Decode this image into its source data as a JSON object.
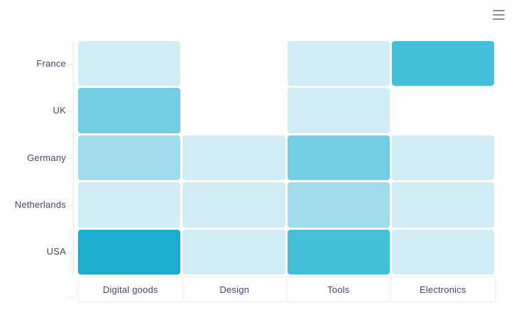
{
  "ui": {
    "menu_button": "export-hamburger-menu"
  },
  "style": {
    "axis_text_color": "#45456a",
    "axis_line_color": "#e9e9ef",
    "background": "#ffffff",
    "menu_icon_color": "#8190a6"
  },
  "chart_data": {
    "type": "heatmap",
    "title": "",
    "x_categories": [
      "Digital goods",
      "Design",
      "Tools",
      "Electronics"
    ],
    "y_categories": [
      "France",
      "UK",
      "Germany",
      "Netherlands",
      "USA"
    ],
    "legend": "none",
    "grid": "off",
    "cell_colors": [
      [
        "#d2edf6",
        null,
        "#d2edf6",
        "#46bfd9"
      ],
      [
        "#73cee3",
        null,
        "#d2edf6",
        null
      ],
      [
        "#a2dcec",
        "#d2edf6",
        "#73cee3",
        "#d2edf6"
      ],
      [
        "#d2edf6",
        "#d2edf6",
        "#a2dcec",
        "#d2edf6"
      ],
      [
        "#1badce",
        "#d2edf6",
        "#46bfd9",
        "#d2edf6"
      ]
    ],
    "intensity_levels_estimated_1to5": [
      [
        1,
        null,
        1,
        4
      ],
      [
        3,
        null,
        1,
        null
      ],
      [
        2,
        1,
        3,
        1
      ],
      [
        1,
        1,
        2,
        1
      ],
      [
        5,
        1,
        4,
        1
      ]
    ],
    "color_scale": {
      "low": "#d2edf6",
      "high": "#1badce",
      "missing_cell": "blank"
    }
  }
}
